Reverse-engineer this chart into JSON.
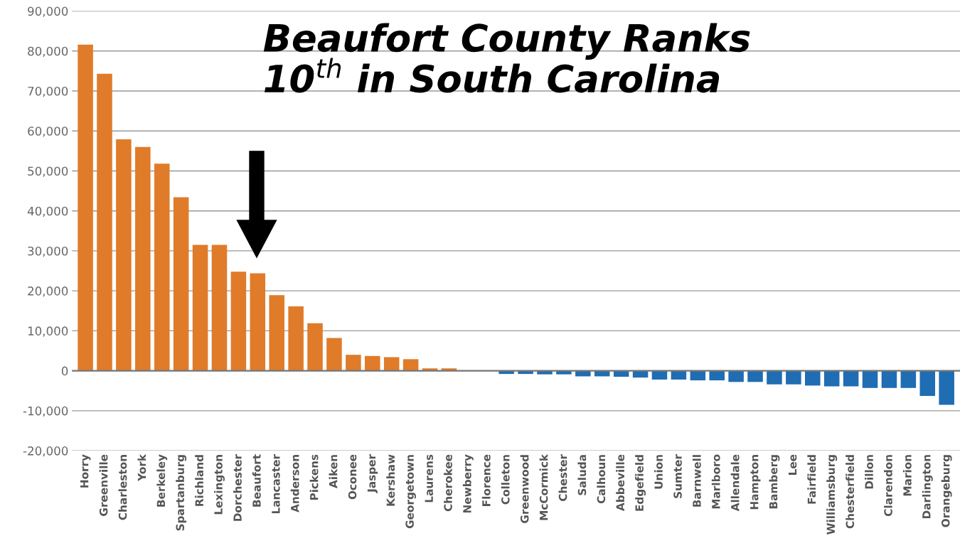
{
  "chart_data": {
    "type": "bar",
    "categories": [
      "Horry",
      "Greenville",
      "Charleston",
      "York",
      "Berkeley",
      "Spartanburg",
      "Richland",
      "Lexington",
      "Dorchester",
      "Beaufort",
      "Lancaster",
      "Anderson",
      "Pickens",
      "Aiken",
      "Oconee",
      "Jasper",
      "Kershaw",
      "Georgetown",
      "Laurens",
      "Cherokee",
      "Newberry",
      "Florence",
      "Colleton",
      "Greenwood",
      "McCormick",
      "Chester",
      "Saluda",
      "Calhoun",
      "Abbeville",
      "Edgefield",
      "Union",
      "Sumter",
      "Barnwell",
      "Marlboro",
      "Allendale",
      "Hampton",
      "Bamberg",
      "Lee",
      "Fairfield",
      "Williamsburg",
      "Chesterfield",
      "Dillon",
      "Clarendon",
      "Marion",
      "Darlington",
      "Orangeburg"
    ],
    "values": [
      81600,
      74300,
      57900,
      56000,
      51800,
      43400,
      31500,
      31500,
      24800,
      24400,
      18900,
      16100,
      11900,
      8200,
      4000,
      3700,
      3400,
      2900,
      600,
      600,
      0,
      0,
      -800,
      -800,
      -900,
      -900,
      -1400,
      -1400,
      -1500,
      -1700,
      -2200,
      -2200,
      -2400,
      -2400,
      -2800,
      -2800,
      -3400,
      -3400,
      -3700,
      -3900,
      -3900,
      -4300,
      -4300,
      -4300,
      -6300,
      -8500
    ],
    "colors": [
      "#e07b2a",
      "#e07b2a",
      "#e07b2a",
      "#e07b2a",
      "#e07b2a",
      "#e07b2a",
      "#e07b2a",
      "#e07b2a",
      "#e07b2a",
      "#e07b2a",
      "#e07b2a",
      "#e07b2a",
      "#e07b2a",
      "#e07b2a",
      "#e07b2a",
      "#e07b2a",
      "#e07b2a",
      "#e07b2a",
      "#e07b2a",
      "#e07b2a",
      "#e07b2a",
      "#1f6db3",
      "#1f6db3",
      "#1f6db3",
      "#1f6db3",
      "#1f6db3",
      "#1f6db3",
      "#1f6db3",
      "#1f6db3",
      "#1f6db3",
      "#1f6db3",
      "#1f6db3",
      "#1f6db3",
      "#1f6db3",
      "#1f6db3",
      "#1f6db3",
      "#1f6db3",
      "#1f6db3",
      "#1f6db3",
      "#1f6db3",
      "#1f6db3",
      "#1f6db3",
      "#1f6db3",
      "#1f6db3",
      "#1f6db3",
      "#1f6db3"
    ],
    "ylim": [
      -20000,
      90000
    ],
    "yticks": [
      {
        "value": -20000,
        "label": "-20,000"
      },
      {
        "value": -10000,
        "label": "-10,000"
      },
      {
        "value": 0,
        "label": "0"
      },
      {
        "value": 10000,
        "label": "10,000"
      },
      {
        "value": 20000,
        "label": "20,000"
      },
      {
        "value": 30000,
        "label": "30,000"
      },
      {
        "value": 40000,
        "label": "40,000"
      },
      {
        "value": 50000,
        "label": "50,000"
      },
      {
        "value": 60000,
        "label": "60,000"
      },
      {
        "value": 70000,
        "label": "70,000"
      },
      {
        "value": 80000,
        "label": "80,000"
      },
      {
        "value": 90000,
        "label": "90,000"
      }
    ],
    "grid": "y",
    "annotations": [
      "Beaufort County Ranks\n10$^{th}$ in South Carolina"
    ]
  }
}
